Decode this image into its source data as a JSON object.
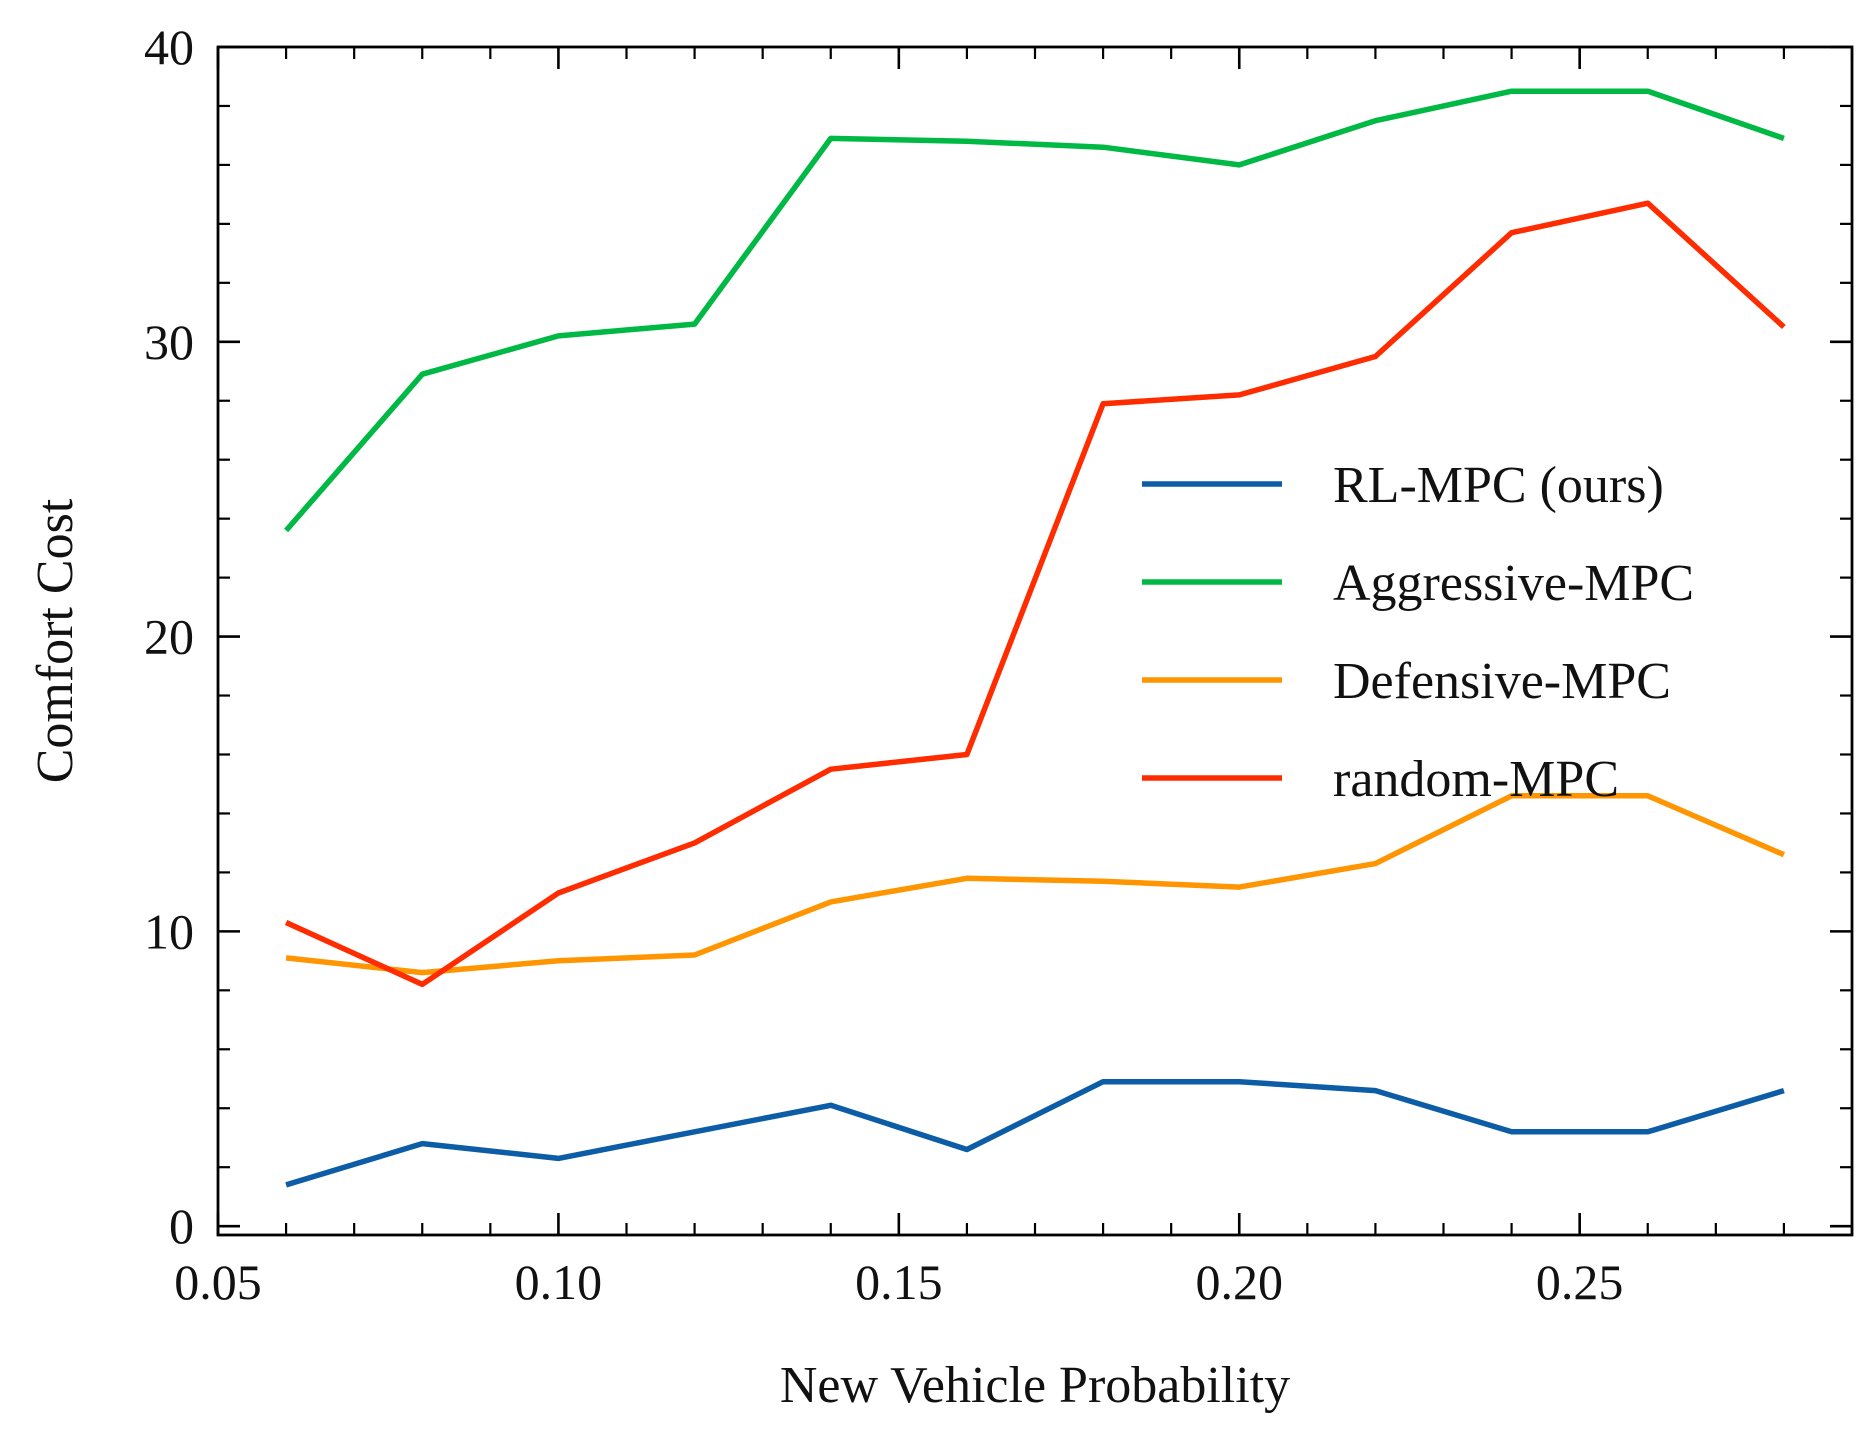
{
  "chart_data": {
    "type": "line",
    "xlabel": "New Vehicle Probability",
    "ylabel": "Comfort Cost",
    "xlim": [
      0.05,
      0.29
    ],
    "ylim": [
      -0.3,
      40
    ],
    "xticks": [
      0.05,
      0.1,
      0.15,
      0.2,
      0.25
    ],
    "xtick_labels": [
      "0.05",
      "0.10",
      "0.15",
      "0.20",
      "0.25"
    ],
    "yticks": [
      0,
      10,
      20,
      30,
      40
    ],
    "ytick_labels": [
      "0",
      "10",
      "20",
      "30",
      "40"
    ],
    "grid": false,
    "legend_position": "center-right",
    "x": [
      0.06,
      0.08,
      0.1,
      0.12,
      0.14,
      0.16,
      0.18,
      0.2,
      0.22,
      0.24,
      0.26,
      0.28
    ],
    "series": [
      {
        "name": "RL-MPC (ours)",
        "color": "#0c5da5",
        "values": [
          1.4,
          2.8,
          2.3,
          3.2,
          4.1,
          2.6,
          4.9,
          4.9,
          4.6,
          3.2,
          3.2,
          4.6
        ]
      },
      {
        "name": "Aggressive-MPC",
        "color": "#00b945",
        "values": [
          23.6,
          28.9,
          30.2,
          30.6,
          36.9,
          36.8,
          36.6,
          36.0,
          37.5,
          38.5,
          38.5,
          36.9
        ]
      },
      {
        "name": "Defensive-MPC",
        "color": "#ff9500",
        "values": [
          9.1,
          8.6,
          9.0,
          9.2,
          11.0,
          11.8,
          11.7,
          11.5,
          12.3,
          14.6,
          14.6,
          12.6
        ]
      },
      {
        "name": "random-MPC",
        "color": "#ff2c00",
        "values": [
          10.3,
          8.2,
          11.3,
          13.0,
          15.5,
          16.0,
          27.9,
          28.2,
          29.5,
          33.7,
          34.7,
          30.5
        ]
      }
    ]
  }
}
